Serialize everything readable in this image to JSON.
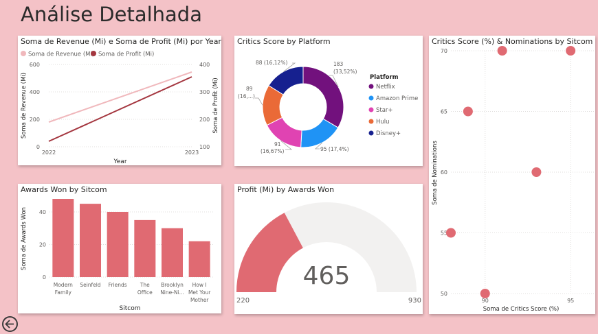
{
  "page": {
    "title": "Análise Detalhada"
  },
  "colors": {
    "background": "#f4c2c7",
    "revenue": "#f0b8bc",
    "profit": "#a4363f",
    "bar": "#e06a72",
    "gauge_fill": "#e06a72",
    "gauge_bg": "#f2f1f0",
    "netflix": "#72117d",
    "amazon": "#1f93f5",
    "star": "#e043b2",
    "hulu": "#ea6a37",
    "disney": "#16208f"
  },
  "chart_data": [
    {
      "id": "revenue-profit",
      "type": "line",
      "title": "Soma de Revenue (Mi) e Soma de Profit (Mi) por Year",
      "xlabel": "Year",
      "ylabel": "Soma de Revenue (Mi)",
      "ylabel2": "Soma de Profit (Mi)",
      "x": [
        "2022",
        "2023"
      ],
      "ylim": [
        0,
        600
      ],
      "y_ticks": [
        "0",
        "200",
        "400",
        "600"
      ],
      "ylim2": [
        100,
        400
      ],
      "y2_ticks": [
        "100",
        "200",
        "300",
        "400"
      ],
      "legend_position": "top-left",
      "series": [
        {
          "name": "Soma de Revenue (Mi)",
          "axis": "left",
          "values": [
            180,
            545
          ]
        },
        {
          "name": "Soma de Profit (Mi)",
          "axis": "right",
          "values": [
            120,
            355
          ]
        }
      ]
    },
    {
      "id": "critics-platform",
      "type": "pie",
      "title": "Critics Score by Platform",
      "legend_title": "Platform",
      "legend_position": "right",
      "slices": [
        {
          "name": "Netflix",
          "value": 183,
          "label": "183\n(33,52%)"
        },
        {
          "name": "Amazon Prime",
          "value": 95,
          "label": "95 (17,4%)"
        },
        {
          "name": "Star+",
          "value": 91,
          "label": "91\n(16,67%)"
        },
        {
          "name": "Hulu",
          "value": 89,
          "label": "89\n(16,...)"
        },
        {
          "name": "Disney+",
          "value": 88,
          "label": "88 (16,12%)"
        }
      ]
    },
    {
      "id": "critics-nominations",
      "type": "scatter",
      "title": "Critics Score (%) & Nominations by Sitcom",
      "xlabel": "Soma de Critics Score (%)",
      "ylabel": "Soma de Nominations",
      "xlim": [
        88,
        96.4
      ],
      "x_ticks": [
        "90",
        "95"
      ],
      "ylim": [
        50,
        70
      ],
      "y_ticks": [
        "50",
        "55",
        "60",
        "65",
        "70"
      ],
      "points": [
        {
          "x": 91,
          "y": 70
        },
        {
          "x": 95,
          "y": 70
        },
        {
          "x": 89,
          "y": 65
        },
        {
          "x": 93,
          "y": 60
        },
        {
          "x": 88,
          "y": 55
        },
        {
          "x": 90,
          "y": 50
        }
      ]
    },
    {
      "id": "awards-sitcom",
      "type": "bar",
      "title": "Awards Won by Sitcom",
      "xlabel": "Sitcom",
      "ylabel": "Soma de Awards Won",
      "ylim": [
        0,
        48
      ],
      "y_ticks": [
        "0",
        "20",
        "40"
      ],
      "categories": [
        [
          "Modern",
          "Family"
        ],
        [
          "Seinfeld"
        ],
        [
          "Friends"
        ],
        [
          "The",
          "Office"
        ],
        [
          "Brooklyn",
          "Nine-Ni..."
        ],
        [
          "How I",
          "Met Your",
          "Mother"
        ]
      ],
      "values": [
        48,
        45,
        40,
        35,
        30,
        22
      ]
    },
    {
      "id": "profit-gauge",
      "type": "gauge",
      "title": "Profit (Mi) by Awards Won",
      "value": 465,
      "min": 220,
      "max": 930,
      "value_label": "465",
      "min_label": "220",
      "max_label": "930"
    }
  ]
}
